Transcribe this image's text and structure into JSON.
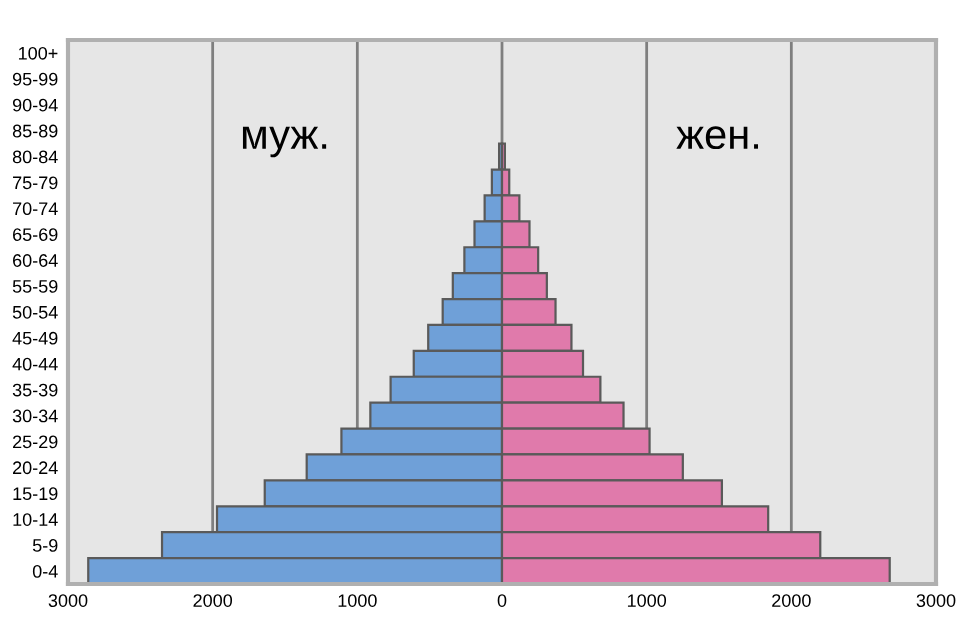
{
  "chart_data": {
    "type": "bar",
    "orientation": "horizontal",
    "stacked": true,
    "categories": [
      "100+",
      "95-99",
      "90-94",
      "85-89",
      "80-84",
      "75-79",
      "70-74",
      "65-69",
      "60-64",
      "55-59",
      "50-54",
      "45-49",
      "40-44",
      "35-39",
      "30-34",
      "25-29",
      "20-24",
      "15-19",
      "10-14",
      "5-9",
      "0-4"
    ],
    "series": [
      {
        "color": "#6fa0d8",
        "values": [
          null,
          null,
          null,
          null,
          -20,
          -70,
          -120,
          -190,
          -260,
          -340,
          -410,
          -510,
          -610,
          -770,
          -910,
          -1110,
          -1350,
          -1640,
          -1970,
          -2350,
          -2860
        ]
      },
      {
        "color": "#e07aab",
        "values": [
          null,
          null,
          null,
          null,
          20,
          50,
          120,
          190,
          250,
          310,
          370,
          480,
          560,
          680,
          840,
          1020,
          1250,
          1520,
          1840,
          2200,
          2680
        ]
      }
    ],
    "annotations": [
      "муж.",
      "жен."
    ],
    "xlim": [
      -3000,
      3000
    ],
    "xticks": [
      {
        "value": -3000,
        "label": "3000"
      },
      {
        "value": -2000,
        "label": "2000"
      },
      {
        "value": -1000,
        "label": "1000"
      },
      0,
      1000,
      2000,
      3000
    ],
    "grid": "x",
    "legend": false
  }
}
